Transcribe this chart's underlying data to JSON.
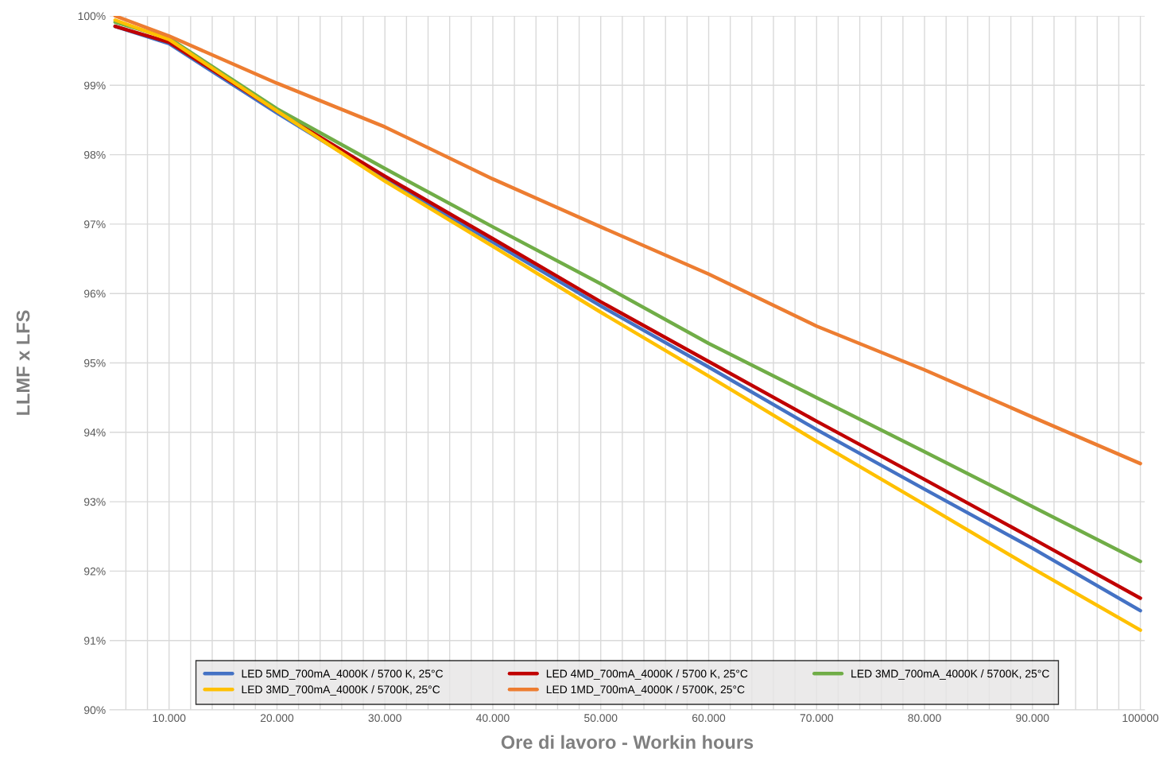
{
  "chart_data": {
    "type": "line",
    "xlabel": "Ore di lavoro - Workin hours",
    "ylabel": "LLMF x LFS",
    "x": [
      5000,
      10000,
      20000,
      30000,
      40000,
      50000,
      60000,
      70000,
      80000,
      90000,
      100000
    ],
    "series": [
      {
        "name": "LED 5MD_700mA_4000K / 5700 K, 25°C",
        "color": "#4472c4",
        "values": [
          99.85,
          99.6,
          98.6,
          97.65,
          96.74,
          95.82,
          94.94,
          94.04,
          93.18,
          92.33,
          91.43
        ]
      },
      {
        "name": "LED 4MD_700mA_4000K / 5700 K, 25°C",
        "color": "#c00000",
        "values": [
          99.85,
          99.62,
          98.63,
          97.69,
          96.79,
          95.88,
          95.02,
          94.16,
          93.32,
          92.47,
          91.61
        ]
      },
      {
        "name": "LED 3MD_700mA_4000K / 5700K, 25°C",
        "color": "#70ad47",
        "values": [
          99.91,
          99.68,
          98.66,
          97.8,
          96.96,
          96.14,
          95.28,
          94.5,
          93.72,
          92.93,
          92.14
        ]
      },
      {
        "name": "LED 3MD_700mA_4000K / 5700K, 25°C",
        "color": "#ffc000",
        "values": [
          99.94,
          99.66,
          98.63,
          97.62,
          96.68,
          95.73,
          94.81,
          93.87,
          92.96,
          92.04,
          91.15
        ]
      },
      {
        "name": "LED 1MD_700mA_4000K / 5700K, 25°C",
        "color": "#ed7d31",
        "values": [
          100.0,
          99.71,
          99.03,
          98.4,
          97.65,
          96.96,
          96.28,
          95.53,
          94.9,
          94.22,
          93.55
        ]
      }
    ],
    "xlim": [
      4500,
      100400
    ],
    "ylim": [
      90,
      100
    ],
    "xticks": [
      {
        "value": 6000,
        "label": null
      },
      {
        "value": 8000,
        "label": null
      },
      {
        "value": 10000,
        "label": "10.000"
      },
      {
        "value": 12000,
        "label": null
      },
      {
        "value": 14000,
        "label": null
      },
      {
        "value": 16000,
        "label": null
      },
      {
        "value": 18000,
        "label": null
      },
      {
        "value": 20000,
        "label": "20.000"
      },
      {
        "value": 22000,
        "label": null
      },
      {
        "value": 24000,
        "label": null
      },
      {
        "value": 26000,
        "label": null
      },
      {
        "value": 28000,
        "label": null
      },
      {
        "value": 30000,
        "label": "30.000"
      },
      {
        "value": 32000,
        "label": null
      },
      {
        "value": 34000,
        "label": null
      },
      {
        "value": 36000,
        "label": null
      },
      {
        "value": 38000,
        "label": null
      },
      {
        "value": 40000,
        "label": "40.000"
      },
      {
        "value": 42000,
        "label": null
      },
      {
        "value": 44000,
        "label": null
      },
      {
        "value": 46000,
        "label": null
      },
      {
        "value": 48000,
        "label": null
      },
      {
        "value": 50000,
        "label": "50.000"
      },
      {
        "value": 52000,
        "label": null
      },
      {
        "value": 54000,
        "label": null
      },
      {
        "value": 56000,
        "label": null
      },
      {
        "value": 58000,
        "label": null
      },
      {
        "value": 60000,
        "label": "60.000"
      },
      {
        "value": 62000,
        "label": null
      },
      {
        "value": 64000,
        "label": null
      },
      {
        "value": 66000,
        "label": null
      },
      {
        "value": 68000,
        "label": null
      },
      {
        "value": 70000,
        "label": "70.000"
      },
      {
        "value": 72000,
        "label": null
      },
      {
        "value": 74000,
        "label": null
      },
      {
        "value": 76000,
        "label": null
      },
      {
        "value": 78000,
        "label": null
      },
      {
        "value": 80000,
        "label": "80.000"
      },
      {
        "value": 82000,
        "label": null
      },
      {
        "value": 84000,
        "label": null
      },
      {
        "value": 86000,
        "label": null
      },
      {
        "value": 88000,
        "label": null
      },
      {
        "value": 90000,
        "label": "90.000"
      },
      {
        "value": 92000,
        "label": null
      },
      {
        "value": 94000,
        "label": null
      },
      {
        "value": 96000,
        "label": null
      },
      {
        "value": 98000,
        "label": null
      },
      {
        "value": 100000,
        "label": "100000"
      }
    ],
    "yticks": [
      {
        "value": 90,
        "label": "90%"
      },
      {
        "value": 91,
        "label": "91%"
      },
      {
        "value": 92,
        "label": "92%"
      },
      {
        "value": 93,
        "label": "93%"
      },
      {
        "value": 94,
        "label": "94%"
      },
      {
        "value": 95,
        "label": "95%"
      },
      {
        "value": 96,
        "label": "96%"
      },
      {
        "value": 97,
        "label": "97%"
      },
      {
        "value": 98,
        "label": "98%"
      },
      {
        "value": 99,
        "label": "99%"
      },
      {
        "value": 100,
        "label": "100%"
      }
    ],
    "grid": true,
    "legend": "bottom",
    "marker": "none",
    "line_style": "solid"
  }
}
